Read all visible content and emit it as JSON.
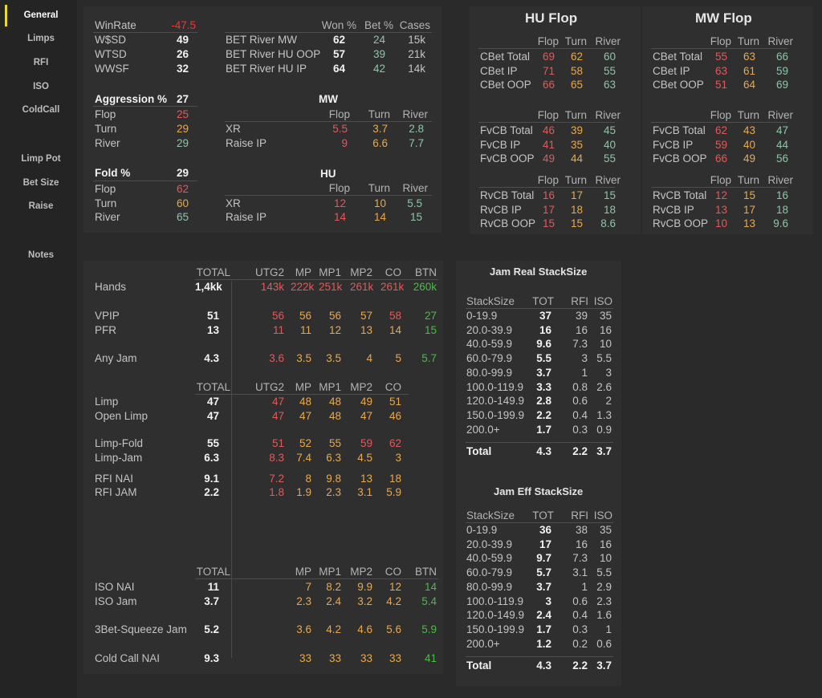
{
  "sidebar": {
    "items": [
      "General",
      "Limps",
      "RFI",
      "ISO",
      "ColdCall",
      "Limp Pot",
      "Bet Size",
      "Raise",
      "Notes"
    ],
    "active": "General",
    "accent": "#e8d93b"
  },
  "colors": {
    "red": "#e05a5a",
    "orange": "#e8a94e",
    "teal": "#8ec5a9",
    "green": "#4fb849",
    "bright_red": "#f13535"
  },
  "general": {
    "winrate_label": "WinRate",
    "winrate_value": "-47.5",
    "wsd_label": "W$SD",
    "wsd_value": "49",
    "wtsd_label": "WTSD",
    "wtsd_value": "26",
    "wwsf_label": "WWSF",
    "wwsf_value": "32"
  },
  "bet_river": {
    "headers": [
      "Won %",
      "Bet %",
      "Cases"
    ],
    "rows": [
      {
        "label": "BET River MW",
        "won": "62",
        "bet": "24",
        "cases": "15k"
      },
      {
        "label": "BET River HU OOP",
        "won": "57",
        "bet": "39",
        "cases": "21k"
      },
      {
        "label": "BET River HU IP",
        "won": "64",
        "bet": "42",
        "cases": "14k"
      }
    ]
  },
  "aggression": {
    "label": "Aggression %",
    "value": "27",
    "rows": [
      {
        "label": "Flop",
        "value": "25"
      },
      {
        "label": "Turn",
        "value": "29"
      },
      {
        "label": "River",
        "value": "29"
      }
    ]
  },
  "fold": {
    "label": "Fold %",
    "value": "29",
    "rows": [
      {
        "label": "Flop",
        "value": "62"
      },
      {
        "label": "Turn",
        "value": "60"
      },
      {
        "label": "River",
        "value": "65"
      }
    ]
  },
  "mw_xr": {
    "title": "MW",
    "headers": [
      "Flop",
      "Turn",
      "River"
    ],
    "rows": [
      {
        "label": "XR",
        "values": [
          "5.5",
          "3.7",
          "2.8"
        ]
      },
      {
        "label": "Raise IP",
        "values": [
          "9",
          "6.6",
          "7.7"
        ]
      }
    ]
  },
  "hu_xr": {
    "title": "HU",
    "headers": [
      "Flop",
      "Turn",
      "River"
    ],
    "rows": [
      {
        "label": "XR",
        "values": [
          "12",
          "10",
          "5.5"
        ]
      },
      {
        "label": "Raise IP",
        "values": [
          "14",
          "14",
          "15"
        ]
      }
    ]
  },
  "hu_flop": {
    "title": "HU Flop",
    "headers": [
      "Flop",
      "Turn",
      "River"
    ],
    "groups": [
      [
        {
          "label": "CBet Total",
          "values": [
            "69",
            "62",
            "60"
          ]
        },
        {
          "label": "CBet IP",
          "values": [
            "71",
            "58",
            "55"
          ]
        },
        {
          "label": "CBet OOP",
          "values": [
            "66",
            "65",
            "63"
          ]
        }
      ],
      [
        {
          "label": "FvCB Total",
          "values": [
            "46",
            "39",
            "45"
          ]
        },
        {
          "label": "FvCB IP",
          "values": [
            "41",
            "35",
            "40"
          ]
        },
        {
          "label": "FvCB OOP",
          "values": [
            "49",
            "44",
            "55"
          ]
        }
      ],
      [
        {
          "label": "RvCB Total",
          "values": [
            "16",
            "17",
            "15"
          ]
        },
        {
          "label": "RvCB IP",
          "values": [
            "17",
            "18",
            "18"
          ]
        },
        {
          "label": "RvCB OOP",
          "values": [
            "15",
            "15",
            "8.6"
          ]
        }
      ]
    ]
  },
  "mw_flop": {
    "title": "MW Flop",
    "headers": [
      "Flop",
      "Turn",
      "River"
    ],
    "groups": [
      [
        {
          "label": "CBet Total",
          "values": [
            "55",
            "63",
            "66"
          ]
        },
        {
          "label": "CBet IP",
          "values": [
            "63",
            "61",
            "59"
          ]
        },
        {
          "label": "CBet OOP",
          "values": [
            "51",
            "64",
            "69"
          ]
        }
      ],
      [
        {
          "label": "FvCB Total",
          "values": [
            "62",
            "43",
            "47"
          ]
        },
        {
          "label": "FvCB IP",
          "values": [
            "59",
            "40",
            "44"
          ]
        },
        {
          "label": "FvCB OOP",
          "values": [
            "66",
            "49",
            "56"
          ]
        }
      ],
      [
        {
          "label": "RvCB Total",
          "values": [
            "12",
            "15",
            "16"
          ]
        },
        {
          "label": "RvCB IP",
          "values": [
            "13",
            "17",
            "18"
          ]
        },
        {
          "label": "RvCB OOP",
          "values": [
            "10",
            "13",
            "9.6"
          ]
        }
      ]
    ]
  },
  "positions": {
    "headers": [
      "TOTAL",
      "UTG2",
      "MP",
      "MP1",
      "MP2",
      "CO",
      "BTN"
    ],
    "hands": {
      "label": "Hands",
      "values": [
        "1,4kk",
        "143k",
        "222k",
        "251k",
        "261k",
        "261k",
        "260k"
      ]
    },
    "vpip": {
      "label": "VPIP",
      "values": [
        "51",
        "56",
        "56",
        "56",
        "57",
        "58",
        "27"
      ]
    },
    "pfr": {
      "label": "PFR",
      "values": [
        "13",
        "11",
        "11",
        "12",
        "13",
        "14",
        "15"
      ]
    },
    "anyjam": {
      "label": "Any Jam",
      "values": [
        "4.3",
        "3.6",
        "3.5",
        "3.5",
        "4",
        "5",
        "5.7"
      ]
    }
  },
  "limps": {
    "headers": [
      "TOTAL",
      "UTG2",
      "MP",
      "MP1",
      "MP2",
      "CO"
    ],
    "rows": [
      {
        "label": "Limp",
        "values": [
          "47",
          "47",
          "48",
          "48",
          "49",
          "51"
        ]
      },
      {
        "label": "Open Limp",
        "values": [
          "47",
          "47",
          "47",
          "48",
          "47",
          "46"
        ]
      },
      {
        "label": "Limp-Fold",
        "values": [
          "55",
          "51",
          "52",
          "55",
          "59",
          "62"
        ]
      },
      {
        "label": "Limp-Jam",
        "values": [
          "6.3",
          "8.3",
          "7.4",
          "6.3",
          "4.5",
          "3"
        ]
      },
      {
        "label": "RFI NAI",
        "values": [
          "9.1",
          "7.2",
          "8",
          "9.8",
          "13",
          "18"
        ]
      },
      {
        "label": "RFI JAM",
        "values": [
          "2.2",
          "1.8",
          "1.9",
          "2.3",
          "3.1",
          "5.9"
        ]
      }
    ]
  },
  "iso": {
    "headers": [
      "TOTAL",
      "MP",
      "MP1",
      "MP2",
      "CO",
      "BTN"
    ],
    "rows": [
      {
        "label": "ISO NAI",
        "values": [
          "11",
          "7",
          "8.2",
          "9.9",
          "12",
          "14"
        ]
      },
      {
        "label": "ISO Jam",
        "values": [
          "3.7",
          "2.3",
          "2.4",
          "3.2",
          "4.2",
          "5.4"
        ]
      },
      {
        "label": "3Bet-Squeeze Jam",
        "values": [
          "5.2",
          "3.6",
          "4.2",
          "4.6",
          "5.6",
          "5.9"
        ]
      },
      {
        "label": "Cold Call NAI",
        "values": [
          "9.3",
          "33",
          "33",
          "33",
          "33",
          "41"
        ]
      }
    ]
  },
  "jam_real": {
    "title": "Jam Real StackSize",
    "headers": [
      "StackSize",
      "TOT",
      "RFI",
      "ISO"
    ],
    "rows": [
      {
        "label": "0-19.9",
        "values": [
          "37",
          "39",
          "35"
        ]
      },
      {
        "label": "20.0-39.9",
        "values": [
          "16",
          "16",
          "16"
        ]
      },
      {
        "label": "40.0-59.9",
        "values": [
          "9.6",
          "7.3",
          "10"
        ]
      },
      {
        "label": "60.0-79.9",
        "values": [
          "5.5",
          "3",
          "5.5"
        ]
      },
      {
        "label": "80.0-99.9",
        "values": [
          "3.7",
          "1",
          "3"
        ]
      },
      {
        "label": "100.0-119.9",
        "values": [
          "3.3",
          "0.8",
          "2.6"
        ]
      },
      {
        "label": "120.0-149.9",
        "values": [
          "2.8",
          "0.6",
          "2"
        ]
      },
      {
        "label": "150.0-199.9",
        "values": [
          "2.2",
          "0.4",
          "1.3"
        ]
      },
      {
        "label": "200.0+",
        "values": [
          "1.7",
          "0.3",
          "0.9"
        ]
      }
    ],
    "total": {
      "label": "Total",
      "values": [
        "4.3",
        "2.2",
        "3.7"
      ]
    }
  },
  "jam_eff": {
    "title": "Jam Eff StackSize",
    "headers": [
      "StackSize",
      "TOT",
      "RFI",
      "ISO"
    ],
    "rows": [
      {
        "label": "0-19.9",
        "values": [
          "36",
          "38",
          "35"
        ]
      },
      {
        "label": "20.0-39.9",
        "values": [
          "17",
          "16",
          "16"
        ]
      },
      {
        "label": "40.0-59.9",
        "values": [
          "9.7",
          "7.3",
          "10"
        ]
      },
      {
        "label": "60.0-79.9",
        "values": [
          "5.7",
          "3.1",
          "5.5"
        ]
      },
      {
        "label": "80.0-99.9",
        "values": [
          "3.7",
          "1",
          "2.9"
        ]
      },
      {
        "label": "100.0-119.9",
        "values": [
          "3",
          "0.6",
          "2.3"
        ]
      },
      {
        "label": "120.0-149.9",
        "values": [
          "2.4",
          "0.4",
          "1.6"
        ]
      },
      {
        "label": "150.0-199.9",
        "values": [
          "1.7",
          "0.3",
          "1"
        ]
      },
      {
        "label": "200.0+",
        "values": [
          "1.2",
          "0.2",
          "0.6"
        ]
      }
    ],
    "total": {
      "label": "Total",
      "values": [
        "4.3",
        "2.2",
        "3.7"
      ]
    }
  }
}
